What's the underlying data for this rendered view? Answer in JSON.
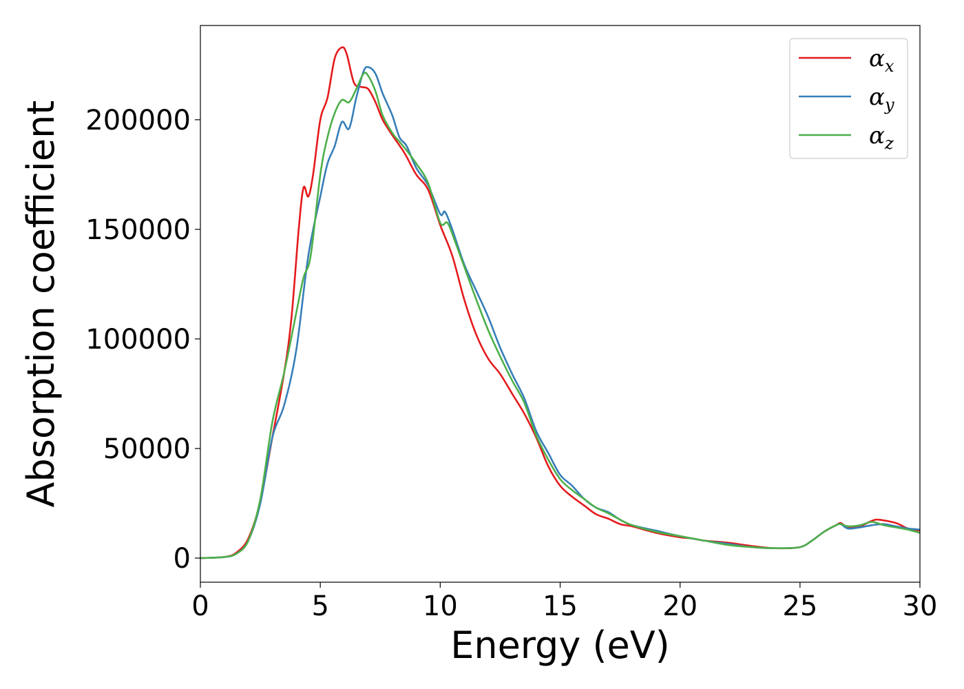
{
  "chart_data": {
    "type": "line",
    "title": "",
    "xlabel": "Energy (eV)",
    "ylabel": "Absorption coefficient",
    "xlim": [
      0,
      30
    ],
    "ylim": [
      -11000,
      243000
    ],
    "xticks": [
      0,
      5,
      10,
      15,
      20,
      25,
      30
    ],
    "xtick_labels": [
      "0",
      "5",
      "10",
      "15",
      "20",
      "25",
      "30"
    ],
    "yticks": [
      0,
      50000,
      100000,
      150000,
      200000
    ],
    "ytick_labels": [
      "0",
      "50000",
      "100000",
      "150000",
      "200000"
    ],
    "grid": false,
    "legend_position": "top-right",
    "series": [
      {
        "name": "α_x",
        "legend_symbol": "α",
        "legend_subscript": "x",
        "color": "#e41a1c",
        "points": [
          [
            0,
            0
          ],
          [
            1,
            500
          ],
          [
            1.5,
            2500
          ],
          [
            2,
            9000
          ],
          [
            2.5,
            26000
          ],
          [
            3,
            55000
          ],
          [
            3.5,
            85000
          ],
          [
            3.8,
            110000
          ],
          [
            4.1,
            150000
          ],
          [
            4.3,
            169000
          ],
          [
            4.5,
            165000
          ],
          [
            4.7,
            175000
          ],
          [
            5,
            200000
          ],
          [
            5.3,
            210000
          ],
          [
            5.6,
            228000
          ],
          [
            5.9,
            233000
          ],
          [
            6.1,
            230000
          ],
          [
            6.4,
            217000
          ],
          [
            6.7,
            215000
          ],
          [
            7,
            214000
          ],
          [
            7.3,
            208000
          ],
          [
            7.6,
            200000
          ],
          [
            8,
            193000
          ],
          [
            8.5,
            185000
          ],
          [
            9,
            175000
          ],
          [
            9.5,
            168000
          ],
          [
            10,
            152000
          ],
          [
            10.5,
            138000
          ],
          [
            11,
            118000
          ],
          [
            11.5,
            102000
          ],
          [
            12,
            91000
          ],
          [
            12.5,
            84000
          ],
          [
            13,
            75000
          ],
          [
            13.5,
            66000
          ],
          [
            14,
            55000
          ],
          [
            14.5,
            42000
          ],
          [
            15,
            33000
          ],
          [
            15.5,
            28000
          ],
          [
            16,
            24000
          ],
          [
            16.5,
            20000
          ],
          [
            17,
            18000
          ],
          [
            17.5,
            15500
          ],
          [
            18,
            14500
          ],
          [
            19,
            11500
          ],
          [
            20,
            9500
          ],
          [
            20.5,
            9000
          ],
          [
            21,
            8000
          ],
          [
            22,
            7000
          ],
          [
            23,
            5500
          ],
          [
            24,
            4500
          ],
          [
            25,
            5000
          ],
          [
            25.5,
            8000
          ],
          [
            26,
            12000
          ],
          [
            26.5,
            15000
          ],
          [
            26.7,
            16000
          ],
          [
            27,
            14000
          ],
          [
            27.5,
            14500
          ],
          [
            28,
            17000
          ],
          [
            28.3,
            17500
          ],
          [
            29,
            16000
          ],
          [
            29.5,
            13500
          ],
          [
            30,
            12500
          ]
        ]
      },
      {
        "name": "α_y",
        "legend_symbol": "α",
        "legend_subscript": "y",
        "color": "#377eb8",
        "points": [
          [
            0,
            0
          ],
          [
            1,
            500
          ],
          [
            1.5,
            2000
          ],
          [
            2,
            8000
          ],
          [
            2.5,
            25000
          ],
          [
            3,
            55000
          ],
          [
            3.5,
            70000
          ],
          [
            4,
            95000
          ],
          [
            4.5,
            138000
          ],
          [
            5,
            165000
          ],
          [
            5.3,
            180000
          ],
          [
            5.6,
            188000
          ],
          [
            5.9,
            199000
          ],
          [
            6.2,
            196000
          ],
          [
            6.5,
            210000
          ],
          [
            6.8,
            222000
          ],
          [
            7,
            224000
          ],
          [
            7.3,
            221000
          ],
          [
            7.6,
            212000
          ],
          [
            8,
            202000
          ],
          [
            8.3,
            192000
          ],
          [
            8.6,
            188000
          ],
          [
            9,
            178000
          ],
          [
            9.5,
            170000
          ],
          [
            10,
            157000
          ],
          [
            10.2,
            158000
          ],
          [
            10.5,
            150000
          ],
          [
            11,
            134000
          ],
          [
            11.5,
            122000
          ],
          [
            12,
            110000
          ],
          [
            12.5,
            96000
          ],
          [
            13,
            84000
          ],
          [
            13.5,
            73000
          ],
          [
            14,
            58000
          ],
          [
            14.5,
            48000
          ],
          [
            15,
            38000
          ],
          [
            15.5,
            33000
          ],
          [
            16,
            27000
          ],
          [
            16.5,
            23000
          ],
          [
            17,
            21000
          ],
          [
            17.5,
            17500
          ],
          [
            18,
            15000
          ],
          [
            19,
            12500
          ],
          [
            20,
            10000
          ],
          [
            21,
            8000
          ],
          [
            22,
            6500
          ],
          [
            23,
            5000
          ],
          [
            24,
            4500
          ],
          [
            25,
            5000
          ],
          [
            25.5,
            8000
          ],
          [
            26,
            12000
          ],
          [
            26.5,
            15000
          ],
          [
            26.7,
            15500
          ],
          [
            27,
            13500
          ],
          [
            27.5,
            14000
          ],
          [
            28,
            15000
          ],
          [
            28.5,
            15500
          ],
          [
            29,
            14500
          ],
          [
            29.5,
            13500
          ],
          [
            30,
            13000
          ]
        ]
      },
      {
        "name": "α_z",
        "legend_symbol": "α",
        "legend_subscript": "z",
        "color": "#4daf4a",
        "points": [
          [
            0,
            0
          ],
          [
            1,
            500
          ],
          [
            1.5,
            2000
          ],
          [
            2,
            8000
          ],
          [
            2.5,
            27000
          ],
          [
            3,
            62000
          ],
          [
            3.5,
            85000
          ],
          [
            4,
            112000
          ],
          [
            4.3,
            128000
          ],
          [
            4.6,
            138000
          ],
          [
            5,
            175000
          ],
          [
            5.3,
            192000
          ],
          [
            5.6,
            203000
          ],
          [
            5.9,
            209000
          ],
          [
            6.2,
            208000
          ],
          [
            6.5,
            214000
          ],
          [
            6.8,
            221000
          ],
          [
            7,
            220000
          ],
          [
            7.3,
            213000
          ],
          [
            7.6,
            202000
          ],
          [
            8,
            194000
          ],
          [
            8.3,
            190000
          ],
          [
            8.6,
            186000
          ],
          [
            9,
            180000
          ],
          [
            9.5,
            171000
          ],
          [
            10,
            153000
          ],
          [
            10.3,
            153000
          ],
          [
            10.6,
            145000
          ],
          [
            11,
            133000
          ],
          [
            11.5,
            118000
          ],
          [
            12,
            104000
          ],
          [
            12.5,
            92000
          ],
          [
            13,
            81000
          ],
          [
            13.5,
            71000
          ],
          [
            14,
            56000
          ],
          [
            14.5,
            45000
          ],
          [
            15,
            36000
          ],
          [
            15.5,
            31000
          ],
          [
            16,
            27000
          ],
          [
            16.5,
            23000
          ],
          [
            17,
            20500
          ],
          [
            17.5,
            17500
          ],
          [
            18,
            15000
          ],
          [
            19,
            12000
          ],
          [
            20,
            10000
          ],
          [
            21,
            8000
          ],
          [
            22,
            6000
          ],
          [
            23,
            5000
          ],
          [
            24,
            4500
          ],
          [
            25,
            5000
          ],
          [
            25.5,
            8000
          ],
          [
            26,
            12000
          ],
          [
            26.5,
            15000
          ],
          [
            26.7,
            15500
          ],
          [
            27,
            14500
          ],
          [
            27.5,
            15000
          ],
          [
            28,
            16500
          ],
          [
            28.5,
            15000
          ],
          [
            29,
            14000
          ],
          [
            29.5,
            13000
          ],
          [
            30,
            11500
          ]
        ]
      }
    ]
  }
}
